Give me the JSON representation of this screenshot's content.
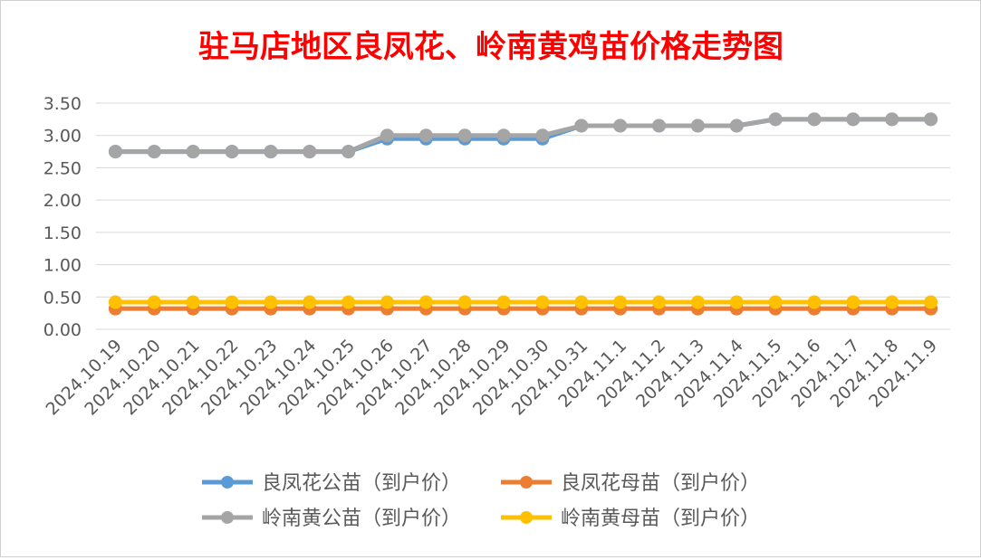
{
  "chart_data": {
    "type": "line",
    "title": "驻马店地区良凤花、岭南黄鸡苗价格走势图",
    "xlabel": "",
    "ylabel": "",
    "ylim": [
      0,
      3.5
    ],
    "yticks": [
      "3.50",
      "3.00",
      "2.50",
      "2.00",
      "1.50",
      "1.00",
      "0.50",
      "0.00"
    ],
    "grid": true,
    "legend_position": "bottom",
    "categories": [
      "2024.10.19",
      "2024.10.20",
      "2024.10.21",
      "2024.10.22",
      "2024.10.23",
      "2024.10.24",
      "2024.10.25",
      "2024.10.26",
      "2024.10.27",
      "2024.10.28",
      "2024.10.29",
      "2024.10.30",
      "2024.10.31",
      "2024.11.1",
      "2024.11.2",
      "2024.11.3",
      "2024.11.4",
      "2024.11.5",
      "2024.11.6",
      "2024.11.7",
      "2024.11.8",
      "2024.11.9"
    ],
    "series": [
      {
        "name": "良凤花公苗（到户价）",
        "color": "#5b9bd5",
        "values": [
          2.75,
          2.75,
          2.75,
          2.75,
          2.75,
          2.75,
          2.75,
          2.95,
          2.95,
          2.95,
          2.95,
          2.95,
          3.15,
          3.15,
          3.15,
          3.15,
          3.15,
          3.25,
          3.25,
          3.25,
          3.25,
          3.25
        ]
      },
      {
        "name": "良凤花母苗（到户价）",
        "color": "#ed7d31",
        "values": [
          0.32,
          0.32,
          0.32,
          0.32,
          0.32,
          0.32,
          0.32,
          0.32,
          0.32,
          0.32,
          0.32,
          0.32,
          0.32,
          0.32,
          0.32,
          0.32,
          0.32,
          0.32,
          0.32,
          0.32,
          0.32,
          0.32
        ]
      },
      {
        "name": "岭南黄公苗（到户价）",
        "color": "#a5a5a5",
        "values": [
          2.75,
          2.75,
          2.75,
          2.75,
          2.75,
          2.75,
          2.75,
          3.0,
          3.0,
          3.0,
          3.0,
          3.0,
          3.15,
          3.15,
          3.15,
          3.15,
          3.15,
          3.25,
          3.25,
          3.25,
          3.25,
          3.25
        ]
      },
      {
        "name": "岭南黄母苗（到户价）",
        "color": "#ffc000",
        "values": [
          0.42,
          0.42,
          0.42,
          0.42,
          0.42,
          0.42,
          0.42,
          0.42,
          0.42,
          0.42,
          0.42,
          0.42,
          0.42,
          0.42,
          0.42,
          0.42,
          0.42,
          0.42,
          0.42,
          0.42,
          0.42,
          0.42
        ]
      }
    ]
  }
}
